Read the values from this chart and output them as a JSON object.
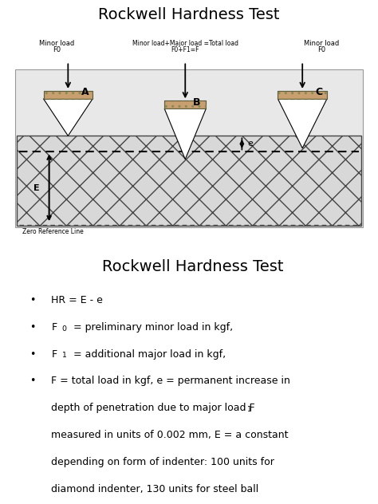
{
  "title_top": "Rockwell Hardness Test",
  "title_bottom": "Rockwell Hardness Test",
  "indenter_fill": "#c8a070",
  "indenter_hatch_fill": "#b8906a",
  "diagram_bg": "#e0e0e0",
  "material_fill": "#d0d0d0",
  "label_zero": "Zero Reference Line",
  "label_A": "A",
  "label_B": "B",
  "label_C": "C",
  "label_E": "E",
  "label_e": "e",
  "minor_load_A": [
    "Minor load",
    "F0"
  ],
  "minor_load_B": [
    "Minor load+Major load =Total load",
    "F0+F1=F"
  ],
  "minor_load_C": [
    "Minor load",
    "F0"
  ],
  "bullet1": "HR = E - e",
  "bullet2_pre": "F",
  "bullet2_sub": "0",
  "bullet2_post": " = preliminary minor load in kgf,",
  "bullet3_pre": "F",
  "bullet3_sub": "1",
  "bullet3_post": " = additional major load in kgf,",
  "bullet4": "F = total load in kgf, e = permanent increase in\ndepth of penetration due to major load F",
  "bullet4_sub": "1",
  "bullet4_rest": "\nmeasured in units of 0.002 mm, E = a constant\ndepending on form of indenter: 100 units for\ndiamond indenter, 130 units for steel ball\nindenter. HR = Rockwell hardness number, R ="
}
